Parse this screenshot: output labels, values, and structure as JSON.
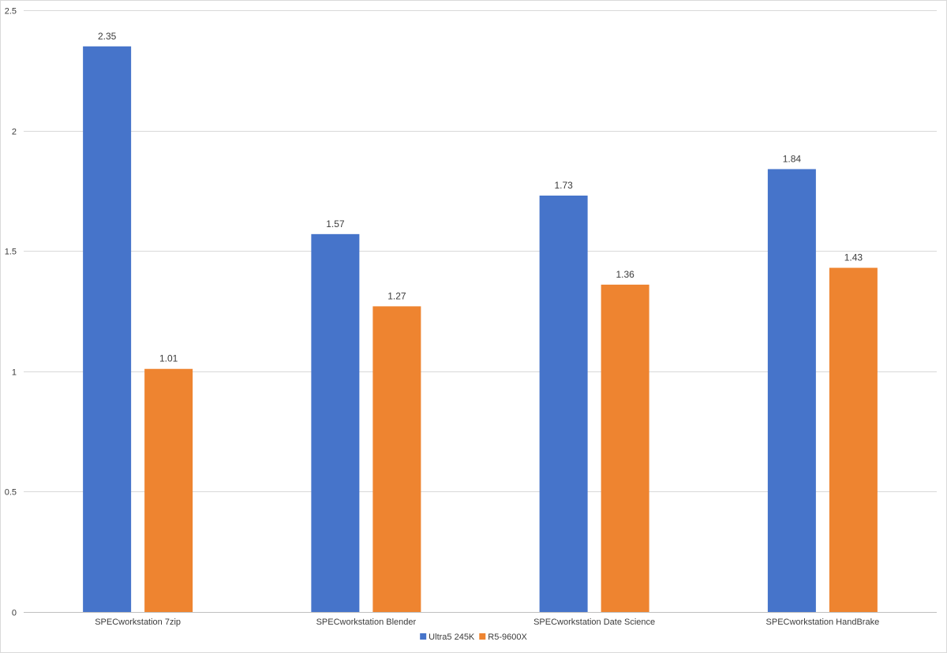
{
  "chart_data": {
    "type": "bar",
    "title": "",
    "xlabel": "",
    "ylabel": "",
    "categories": [
      "SPECworkstation  7zip",
      "SPECworkstation  Blender",
      "SPECworkstation  Date Science",
      "SPECworkstation  HandBrake"
    ],
    "series": [
      {
        "name": "Ultra5 245K",
        "color": "#4674ca",
        "values": [
          2.35,
          1.57,
          1.73,
          1.84
        ]
      },
      {
        "name": "R5-9600X",
        "color": "#ee8430",
        "values": [
          1.01,
          1.27,
          1.36,
          1.43
        ]
      }
    ],
    "ylim": [
      0,
      2.5
    ],
    "yticks": [
      "0",
      "0.5",
      "1",
      "1.5",
      "2",
      "2.5"
    ],
    "grid": true,
    "legend_position": "bottom"
  }
}
